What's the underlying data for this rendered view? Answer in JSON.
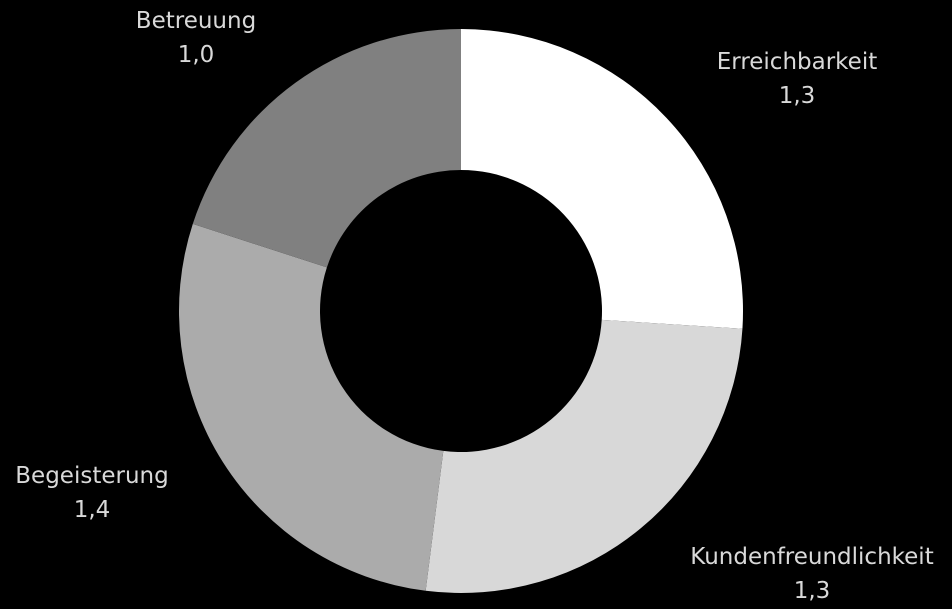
{
  "chart_data": {
    "type": "pie",
    "donut": true,
    "start_angle_deg": 0,
    "direction": "clockwise",
    "slices": [
      {
        "label": "Erreichbarkeit",
        "value": 1.3,
        "value_label": "1,3",
        "color": "#FFFFFF"
      },
      {
        "label": "Kundenfreundlichkeit",
        "value": 1.3,
        "value_label": "1,3",
        "color": "#D8D8D8"
      },
      {
        "label": "Begeisterung",
        "value": 1.4,
        "value_label": "1,4",
        "color": "#ABABAB"
      },
      {
        "label": "Betreuung",
        "value": 1.0,
        "value_label": "1,0",
        "color": "#808080"
      }
    ],
    "label_color": "#D9D9D9",
    "background": "#000000"
  }
}
